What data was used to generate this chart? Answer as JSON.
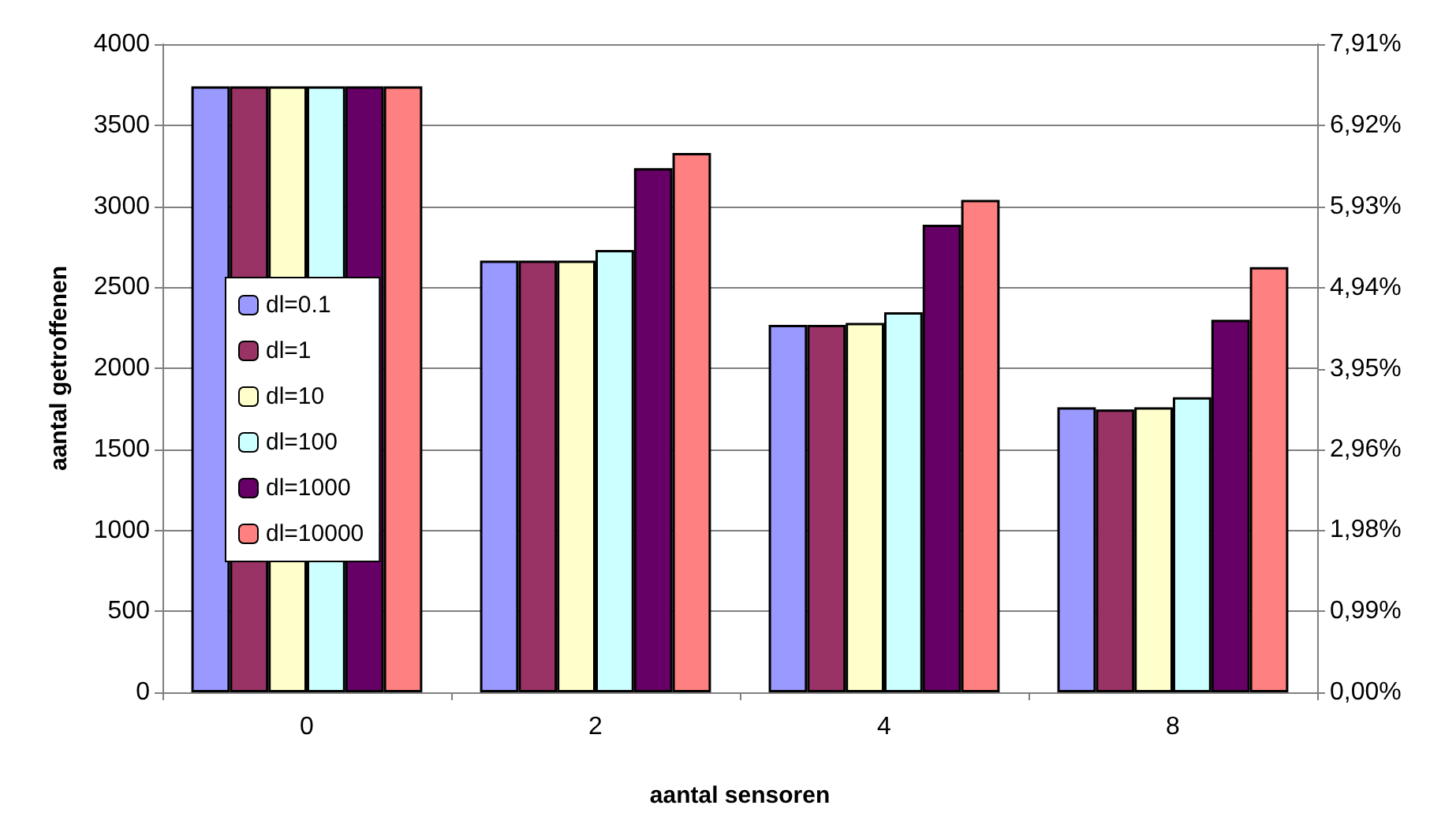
{
  "chart_data": {
    "type": "bar",
    "xlabel": "aantal sensoren",
    "ylabel": "aantal getroffenen",
    "categories": [
      "0",
      "2",
      "4",
      "8"
    ],
    "series": [
      {
        "name": "dl=0.1",
        "color": "#9999ff",
        "values": [
          3740,
          2664,
          2268,
          1759
        ]
      },
      {
        "name": "dl=1",
        "color": "#993366",
        "values": [
          3740,
          2664,
          2268,
          1746
        ]
      },
      {
        "name": "dl=10",
        "color": "#ffffcc",
        "values": [
          3740,
          2664,
          2280,
          1759
        ]
      },
      {
        "name": "dl=100",
        "color": "#ccffff",
        "values": [
          3740,
          2730,
          2345,
          1821
        ]
      },
      {
        "name": "dl=1000",
        "color": "#660066",
        "values": [
          3740,
          3235,
          2886,
          2299
        ]
      },
      {
        "name": "dl=10000",
        "color": "#ff8080",
        "values": [
          3740,
          3329,
          3039,
          2624
        ]
      }
    ],
    "ylim": [
      0,
      4000
    ],
    "yticks": [
      0,
      500,
      1000,
      1500,
      2000,
      2500,
      3000,
      3500,
      4000
    ],
    "y2lim": [
      0,
      7.91
    ],
    "y2ticks": [
      {
        "value": 0,
        "label": "0,00%"
      },
      {
        "value": 0.99,
        "label": "0,99%"
      },
      {
        "value": 1.98,
        "label": "1,98%"
      },
      {
        "value": 2.96,
        "label": "2,96%"
      },
      {
        "value": 3.95,
        "label": "3,95%"
      },
      {
        "value": 4.94,
        "label": "4,94%"
      },
      {
        "value": 5.93,
        "label": "5,93%"
      },
      {
        "value": 6.92,
        "label": "6,92%"
      },
      {
        "value": 7.91,
        "label": "7,91%"
      }
    ],
    "grid": "y",
    "legend": "left"
  }
}
